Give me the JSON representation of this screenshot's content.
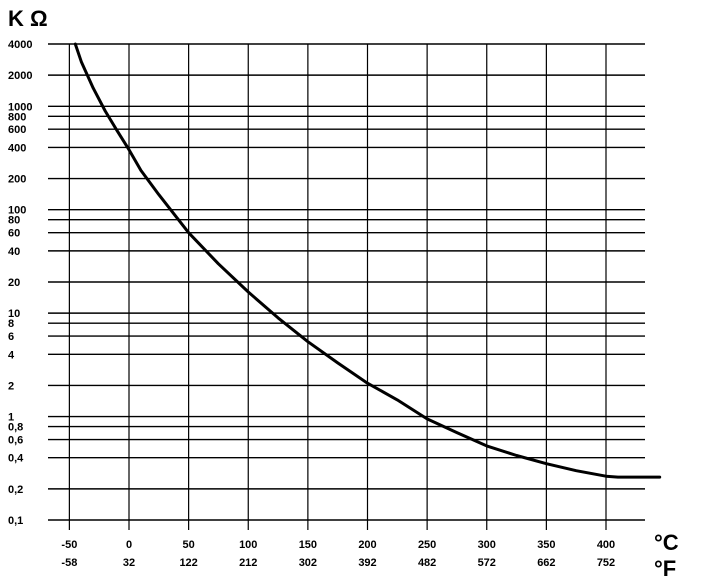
{
  "chart_data": {
    "type": "line",
    "title": "",
    "ylabel": "K Ω",
    "xlabel_primary": "°C",
    "xlabel_secondary": "°F",
    "y_scale": "log",
    "ylim": [
      0.1,
      4000
    ],
    "xlim": [
      -50,
      410
    ],
    "grid": true,
    "y_ticks": [
      {
        "value": 4000,
        "label": "4000"
      },
      {
        "value": 2000,
        "label": "2000"
      },
      {
        "value": 1000,
        "label": "1000"
      },
      {
        "value": 800,
        "label": "800"
      },
      {
        "value": 600,
        "label": "600"
      },
      {
        "value": 400,
        "label": "400"
      },
      {
        "value": 200,
        "label": "200"
      },
      {
        "value": 100,
        "label": "100"
      },
      {
        "value": 80,
        "label": "80"
      },
      {
        "value": 60,
        "label": "60"
      },
      {
        "value": 40,
        "label": "40"
      },
      {
        "value": 20,
        "label": "20"
      },
      {
        "value": 10,
        "label": "10"
      },
      {
        "value": 8,
        "label": "8"
      },
      {
        "value": 6,
        "label": "6"
      },
      {
        "value": 4,
        "label": "4"
      },
      {
        "value": 2,
        "label": "2"
      },
      {
        "value": 1,
        "label": "1"
      },
      {
        "value": 0.8,
        "label": "0,8"
      },
      {
        "value": 0.6,
        "label": "0,6"
      },
      {
        "value": 0.4,
        "label": "0,4"
      },
      {
        "value": 0.2,
        "label": "0,2"
      },
      {
        "value": 0.1,
        "label": "0,1"
      }
    ],
    "x_ticks": [
      {
        "value": -50,
        "label_c": "-50",
        "label_f": "-58"
      },
      {
        "value": 0,
        "label_c": "0",
        "label_f": "32"
      },
      {
        "value": 50,
        "label_c": "50",
        "label_f": "122"
      },
      {
        "value": 100,
        "label_c": "100",
        "label_f": "212"
      },
      {
        "value": 150,
        "label_c": "150",
        "label_f": "302"
      },
      {
        "value": 200,
        "label_c": "200",
        "label_f": "392"
      },
      {
        "value": 250,
        "label_c": "250",
        "label_f": "482"
      },
      {
        "value": 300,
        "label_c": "300",
        "label_f": "572"
      },
      {
        "value": 350,
        "label_c": "350",
        "label_f": "662"
      },
      {
        "value": 400,
        "label_c": "400",
        "label_f": "752"
      }
    ],
    "series": [
      {
        "values": [
          {
            "x": -45,
            "y": 4000
          },
          {
            "x": -40,
            "y": 2700
          },
          {
            "x": -30,
            "y": 1500
          },
          {
            "x": -20,
            "y": 900
          },
          {
            "x": -10,
            "y": 580
          },
          {
            "x": 0,
            "y": 380
          },
          {
            "x": 10,
            "y": 240
          },
          {
            "x": 25,
            "y": 140
          },
          {
            "x": 50,
            "y": 60
          },
          {
            "x": 75,
            "y": 30
          },
          {
            "x": 100,
            "y": 16
          },
          {
            "x": 125,
            "y": 9
          },
          {
            "x": 150,
            "y": 5.3
          },
          {
            "x": 175,
            "y": 3.3
          },
          {
            "x": 200,
            "y": 2.1
          },
          {
            "x": 225,
            "y": 1.45
          },
          {
            "x": 250,
            "y": 0.95
          },
          {
            "x": 275,
            "y": 0.7
          },
          {
            "x": 300,
            "y": 0.52
          },
          {
            "x": 325,
            "y": 0.42
          },
          {
            "x": 350,
            "y": 0.35
          },
          {
            "x": 375,
            "y": 0.3
          },
          {
            "x": 400,
            "y": 0.265
          },
          {
            "x": 410,
            "y": 0.26
          },
          {
            "x": 445,
            "y": 0.26
          }
        ]
      }
    ]
  }
}
